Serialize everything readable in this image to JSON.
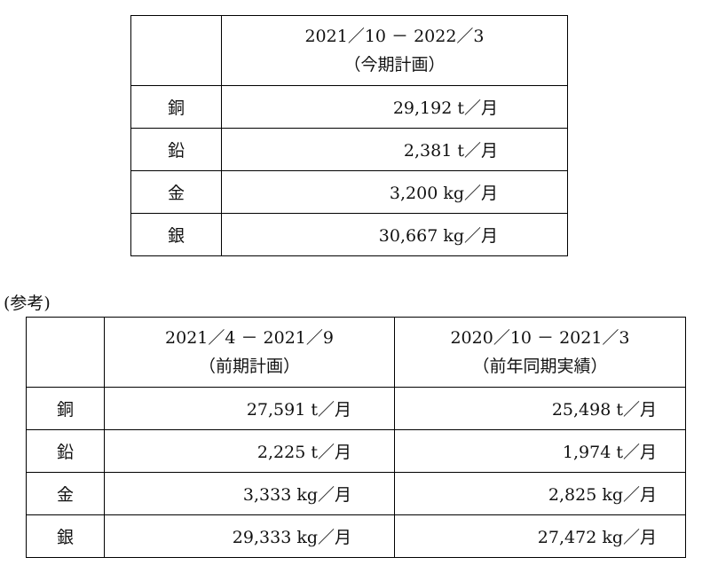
{
  "table1": {
    "header": {
      "period": "2021／10 － 2022／3",
      "label": "（今期計画）"
    },
    "rows": [
      {
        "metal": "銅",
        "value": "29,192 t／月"
      },
      {
        "metal": "鉛",
        "value": "2,381 t／月"
      },
      {
        "metal": "金",
        "value": "3,200 kg／月"
      },
      {
        "metal": "銀",
        "value": "30,667 kg／月"
      }
    ]
  },
  "reference_label": "(参考)",
  "table2": {
    "headers": [
      {
        "period": "2021／4 － 2021／9",
        "label": "（前期計画）"
      },
      {
        "period": "2020／10 － 2021／3",
        "label": "（前年同期実績）"
      }
    ],
    "rows": [
      {
        "metal": "銅",
        "values": [
          "27,591 t／月",
          "25,498 t／月"
        ]
      },
      {
        "metal": "鉛",
        "values": [
          "2,225 t／月",
          "1,974 t／月"
        ]
      },
      {
        "metal": "金",
        "values": [
          "3,333 kg／月",
          "2,825 kg／月"
        ]
      },
      {
        "metal": "銀",
        "values": [
          "29,333 kg／月",
          "27,472 kg／月"
        ]
      }
    ]
  }
}
